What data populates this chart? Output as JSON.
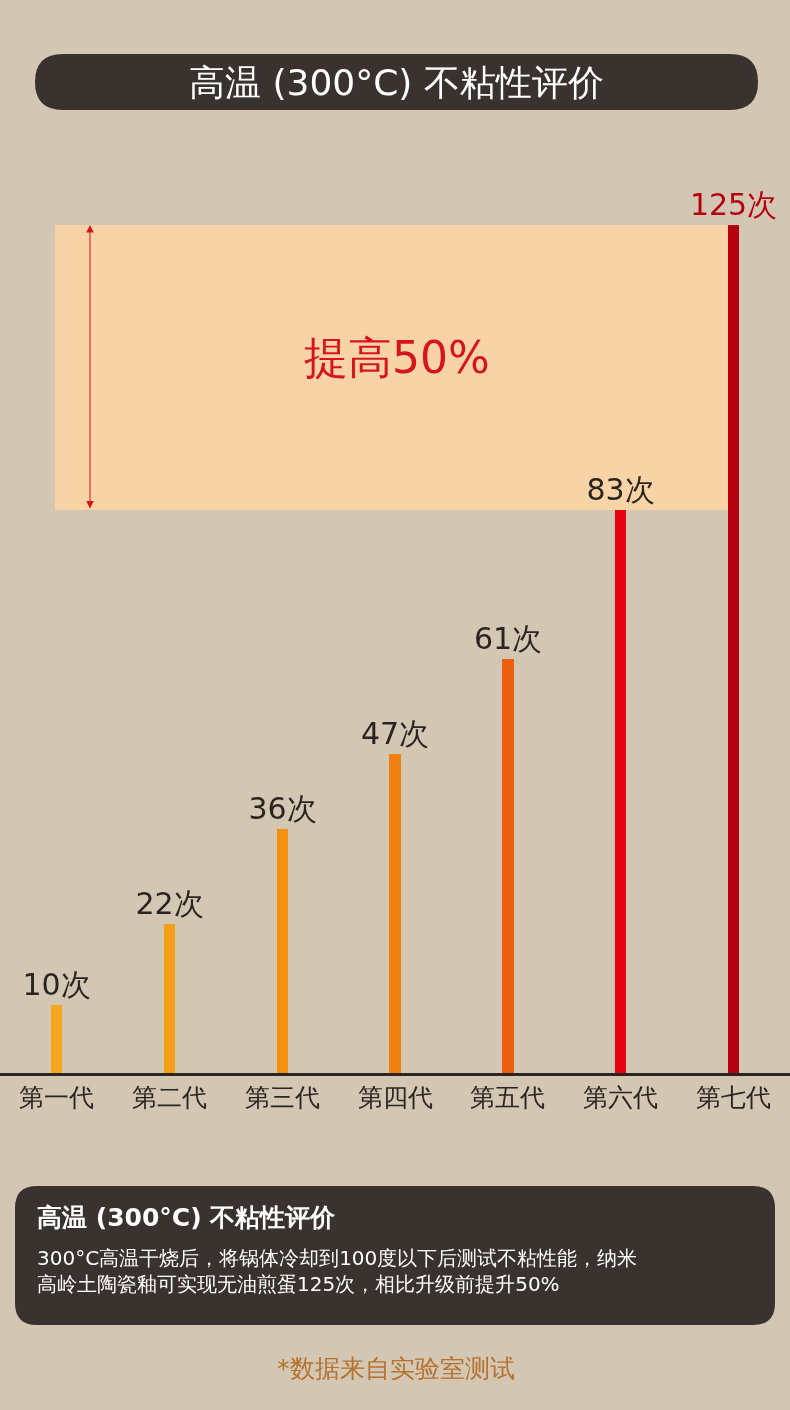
{
  "chart_data": {
    "type": "bar",
    "title": "高温 (300°C) 不粘性评价",
    "categories": [
      "第一代",
      "第二代",
      "第三代",
      "第四代",
      "第五代",
      "第六代",
      "第七代"
    ],
    "values": [
      10,
      22,
      36,
      47,
      61,
      83,
      125
    ],
    "colors": [
      "#f5a81c",
      "#f4a017",
      "#f29012",
      "#f0800f",
      "#eb5f0d",
      "#e60012",
      "#b4000f"
    ],
    "value_labels": [
      "10次",
      "22次",
      "36次",
      "47次",
      "61次",
      "83次",
      "125次"
    ],
    "ylim": [
      0,
      125
    ],
    "tick_labels": "x",
    "grid": false,
    "legend": false,
    "bands": [
      {
        "axis": "y",
        "from": 83,
        "to": 125,
        "label": "提高50%",
        "color": "#f8d3a6"
      }
    ],
    "annotations": [
      "高温 (300°C) 不粘性评价",
      "300°C高温干烧后，将锅体冷却到100度以下后测试不粘性能，纳米高岭土陶瓷釉可实现无油煎蛋125次，相比升级前提升50%",
      "*数据来自实验室测试"
    ]
  }
}
